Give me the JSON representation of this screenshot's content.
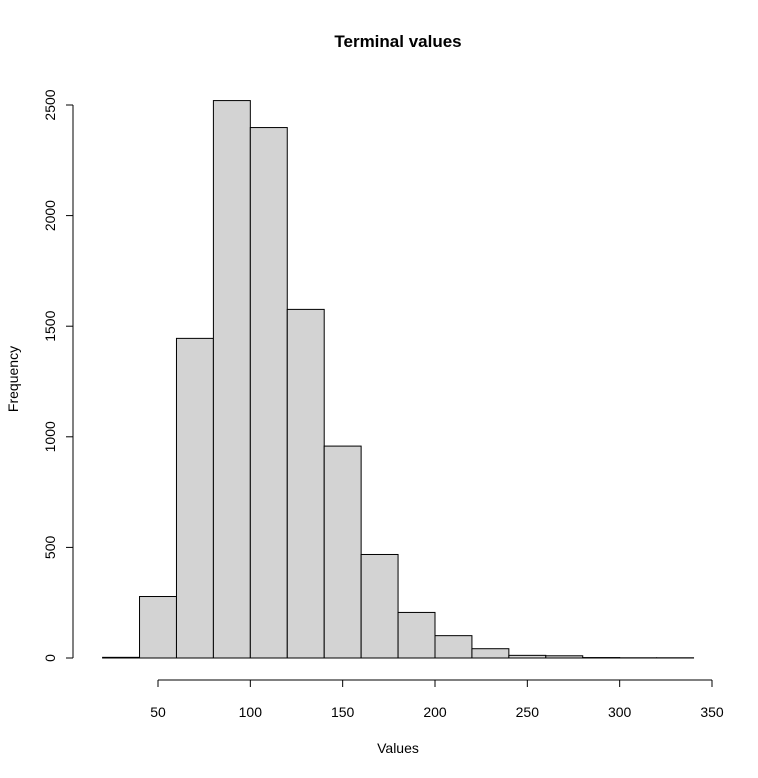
{
  "chart_data": {
    "type": "bar",
    "title": "Terminal values",
    "xlabel": "Values",
    "ylabel": "Frequency",
    "bins": [
      {
        "start": 20,
        "end": 40,
        "count": 3
      },
      {
        "start": 40,
        "end": 60,
        "count": 278
      },
      {
        "start": 60,
        "end": 80,
        "count": 1445
      },
      {
        "start": 80,
        "end": 100,
        "count": 2520
      },
      {
        "start": 100,
        "end": 120,
        "count": 2398
      },
      {
        "start": 120,
        "end": 140,
        "count": 1576
      },
      {
        "start": 140,
        "end": 160,
        "count": 958
      },
      {
        "start": 160,
        "end": 180,
        "count": 468
      },
      {
        "start": 180,
        "end": 200,
        "count": 206
      },
      {
        "start": 200,
        "end": 220,
        "count": 101
      },
      {
        "start": 220,
        "end": 240,
        "count": 42
      },
      {
        "start": 240,
        "end": 260,
        "count": 12
      },
      {
        "start": 260,
        "end": 280,
        "count": 10
      },
      {
        "start": 280,
        "end": 300,
        "count": 2
      },
      {
        "start": 300,
        "end": 320,
        "count": 1
      },
      {
        "start": 320,
        "end": 340,
        "count": 1
      }
    ],
    "xlim": [
      50,
      350
    ],
    "ylim": [
      0,
      2500
    ],
    "x_ticks": [
      "50",
      "100",
      "150",
      "200",
      "250",
      "300",
      "350"
    ],
    "y_ticks": [
      "0",
      "500",
      "1000",
      "1500",
      "2000",
      "2500"
    ],
    "grid": false,
    "colors": {
      "bar_fill": "#d3d3d3",
      "bar_stroke": "#000000"
    }
  }
}
